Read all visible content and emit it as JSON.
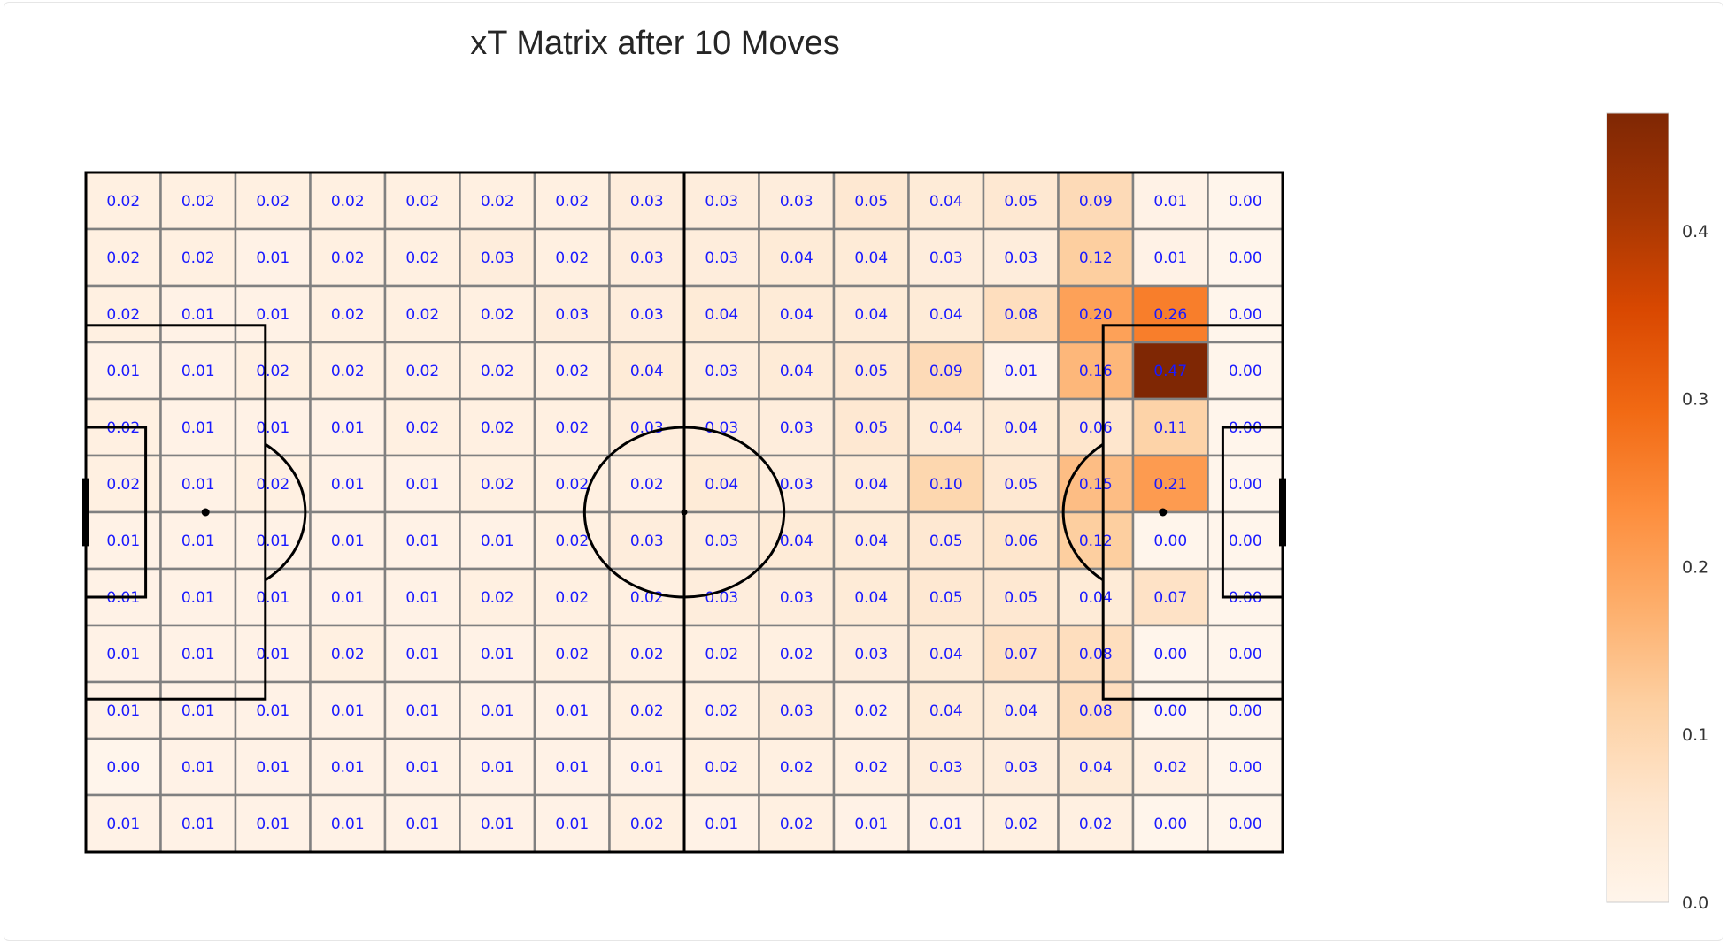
{
  "chart_data": {
    "type": "heatmap",
    "title": "xT Matrix after 10 Moves",
    "xlabel": "",
    "ylabel": "",
    "rows": 12,
    "cols": 16,
    "values": [
      [
        0.02,
        0.02,
        0.02,
        0.02,
        0.02,
        0.02,
        0.02,
        0.03,
        0.03,
        0.03,
        0.05,
        0.04,
        0.05,
        0.09,
        0.01,
        0.0
      ],
      [
        0.02,
        0.02,
        0.01,
        0.02,
        0.02,
        0.03,
        0.02,
        0.03,
        0.03,
        0.04,
        0.04,
        0.03,
        0.03,
        0.12,
        0.01,
        0.0
      ],
      [
        0.02,
        0.01,
        0.01,
        0.02,
        0.02,
        0.02,
        0.03,
        0.03,
        0.04,
        0.04,
        0.04,
        0.04,
        0.08,
        0.2,
        0.26,
        0.0
      ],
      [
        0.01,
        0.01,
        0.02,
        0.02,
        0.02,
        0.02,
        0.02,
        0.04,
        0.03,
        0.04,
        0.05,
        0.09,
        0.01,
        0.16,
        0.47,
        0.0
      ],
      [
        0.02,
        0.01,
        0.01,
        0.01,
        0.02,
        0.02,
        0.02,
        0.03,
        0.03,
        0.03,
        0.05,
        0.04,
        0.04,
        0.06,
        0.11,
        0.0
      ],
      [
        0.02,
        0.01,
        0.02,
        0.01,
        0.01,
        0.02,
        0.02,
        0.02,
        0.04,
        0.03,
        0.04,
        0.1,
        0.05,
        0.15,
        0.21,
        0.0
      ],
      [
        0.01,
        0.01,
        0.01,
        0.01,
        0.01,
        0.01,
        0.02,
        0.03,
        0.03,
        0.04,
        0.04,
        0.05,
        0.06,
        0.12,
        0.0,
        0.0
      ],
      [
        0.01,
        0.01,
        0.01,
        0.01,
        0.01,
        0.02,
        0.02,
        0.02,
        0.03,
        0.03,
        0.04,
        0.05,
        0.05,
        0.04,
        0.07,
        0.0
      ],
      [
        0.01,
        0.01,
        0.01,
        0.02,
        0.01,
        0.01,
        0.02,
        0.02,
        0.02,
        0.02,
        0.03,
        0.04,
        0.07,
        0.08,
        0.0,
        0.0
      ],
      [
        0.01,
        0.01,
        0.01,
        0.01,
        0.01,
        0.01,
        0.01,
        0.02,
        0.02,
        0.03,
        0.02,
        0.04,
        0.04,
        0.08,
        0.0,
        0.0
      ],
      [
        0.0,
        0.01,
        0.01,
        0.01,
        0.01,
        0.01,
        0.01,
        0.01,
        0.02,
        0.02,
        0.02,
        0.03,
        0.03,
        0.04,
        0.02,
        0.0
      ],
      [
        0.01,
        0.01,
        0.01,
        0.01,
        0.01,
        0.01,
        0.01,
        0.02,
        0.01,
        0.02,
        0.01,
        0.01,
        0.02,
        0.02,
        0.0,
        0.0
      ]
    ],
    "color_scale": {
      "name": "Oranges",
      "vmin": 0.0,
      "vmax": 0.47,
      "ticks": [
        0.0,
        0.1,
        0.2,
        0.3,
        0.4
      ],
      "colors": [
        "#fff5eb",
        "#fee6ce",
        "#fdd0a2",
        "#fdae6b",
        "#fd8d3c",
        "#f16913",
        "#d94801",
        "#a63603",
        "#7f2704"
      ]
    },
    "grid": true,
    "legend": "colorbar-right"
  }
}
